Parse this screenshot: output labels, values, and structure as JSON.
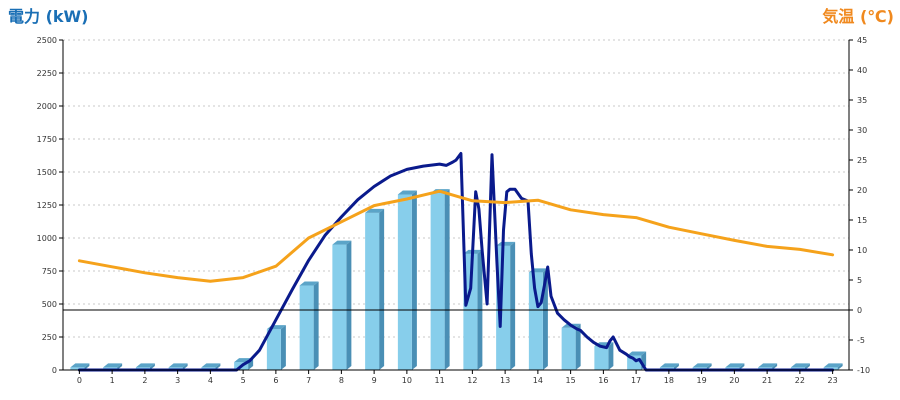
{
  "chart_data": {
    "type": "bar",
    "left_axis_title": "電力 (kW)",
    "right_axis_title": "気温 (℃)",
    "left_axis_color": "#1a6fb5",
    "right_axis_color": "#f0891e",
    "x": [
      0,
      1,
      2,
      3,
      4,
      5,
      6,
      7,
      8,
      9,
      10,
      11,
      12,
      13,
      14,
      15,
      16,
      17,
      18,
      19,
      20,
      21,
      22,
      23
    ],
    "x_ticks": [
      "0",
      "1",
      "2",
      "3",
      "4",
      "5",
      "6",
      "7",
      "8",
      "9",
      "10",
      "11",
      "12",
      "13",
      "14",
      "15",
      "16",
      "17",
      "18",
      "19",
      "20",
      "21",
      "22",
      "23"
    ],
    "y_left": {
      "lim": [
        0,
        2500
      ],
      "ticks": [
        0,
        250,
        500,
        750,
        1000,
        1250,
        1500,
        1750,
        2000,
        2250,
        2500
      ]
    },
    "y_right": {
      "lim": [
        -10,
        45
      ],
      "ticks": [
        -10,
        -5,
        0,
        5,
        10,
        15,
        20,
        25,
        30,
        35,
        40,
        45
      ]
    },
    "grid": true,
    "series": [
      {
        "kind": "bar",
        "axis": "left",
        "color": "#87ceeb",
        "values": [
          20,
          20,
          20,
          20,
          20,
          60,
          310,
          640,
          950,
          1190,
          1330,
          1340,
          880,
          940,
          740,
          320,
          180,
          110,
          20,
          20,
          20,
          20,
          20,
          20
        ]
      },
      {
        "kind": "line",
        "axis": "left",
        "color": "#0a1a8c",
        "x": [
          0,
          4.8,
          5.0,
          5.2,
          5.5,
          6.0,
          6.5,
          7.0,
          7.5,
          8.0,
          8.5,
          9.0,
          9.5,
          10.0,
          10.5,
          11.0,
          11.2,
          11.4,
          11.5,
          11.65,
          11.8,
          11.95,
          12.1,
          12.2,
          12.3,
          12.45,
          12.6,
          12.75,
          12.85,
          12.95,
          13.05,
          13.15,
          13.3,
          13.5,
          13.7,
          13.8,
          13.9,
          14.0,
          14.1,
          14.2,
          14.3,
          14.4,
          14.6,
          14.8,
          15.0,
          15.2,
          15.3,
          15.5,
          15.7,
          15.9,
          16.1,
          16.2,
          16.3,
          16.5,
          16.7,
          16.8,
          16.9,
          17.0,
          17.1,
          17.3,
          18,
          23
        ],
        "y": [
          0,
          0,
          40,
          70,
          150,
          380,
          610,
          830,
          1020,
          1160,
          1290,
          1390,
          1470,
          1520,
          1545,
          1560,
          1550,
          1575,
          1590,
          1640,
          490,
          620,
          1350,
          1220,
          900,
          500,
          1630,
          820,
          330,
          1060,
          1350,
          1370,
          1370,
          1300,
          1280,
          880,
          620,
          480,
          510,
          640,
          780,
          560,
          430,
          380,
          340,
          310,
          300,
          250,
          210,
          180,
          170,
          220,
          250,
          150,
          120,
          100,
          90,
          70,
          80,
          0,
          0,
          0
        ]
      },
      {
        "kind": "line",
        "axis": "right",
        "color": "#f5a21b",
        "values": [
          8.2,
          7.2,
          6.2,
          5.4,
          4.8,
          5.4,
          7.3,
          12.0,
          14.7,
          17.4,
          18.5,
          19.8,
          18.2,
          17.9,
          18.3,
          16.7,
          15.9,
          15.4,
          13.8,
          12.7,
          11.6,
          10.6,
          10.1,
          9.2
        ]
      }
    ]
  }
}
